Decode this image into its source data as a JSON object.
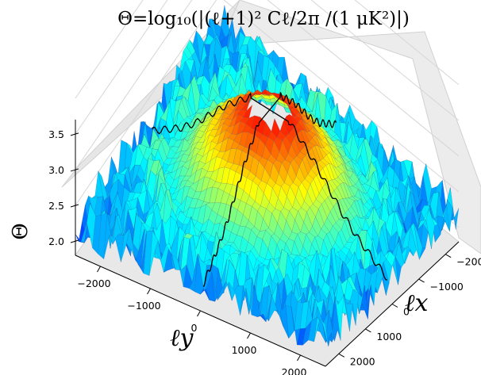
{
  "chart_data": {
    "type": "surface",
    "title": "Θ=log₁₀(|(ℓ+1)² Cℓ/2π /(1 μK²)|)",
    "zlabel": "Θ",
    "xlabel": "ℓx",
    "ylabel": "ℓy",
    "xticks": [
      "−2000",
      "−1000",
      "0",
      "1000",
      "2000"
    ],
    "yticks": [
      "−2000",
      "−1000",
      "0",
      "1000",
      "2000"
    ],
    "zticks": [
      "2.0",
      "2.5",
      "3.0",
      "3.5"
    ],
    "xlim": [
      -2500,
      2500
    ],
    "ylim": [
      -2500,
      2500
    ],
    "zlim": [
      1.8,
      3.7
    ],
    "colormap": "jet",
    "grid": true,
    "hole_radius": 380,
    "ring_peak_radius": 550,
    "profile_x": [
      0,
      300,
      600,
      900,
      1200,
      1500,
      1800,
      2100,
      2400
    ],
    "profile_z": [
      3.52,
      3.5,
      3.3,
      3.1,
      2.85,
      2.6,
      2.4,
      2.25,
      2.1
    ]
  }
}
